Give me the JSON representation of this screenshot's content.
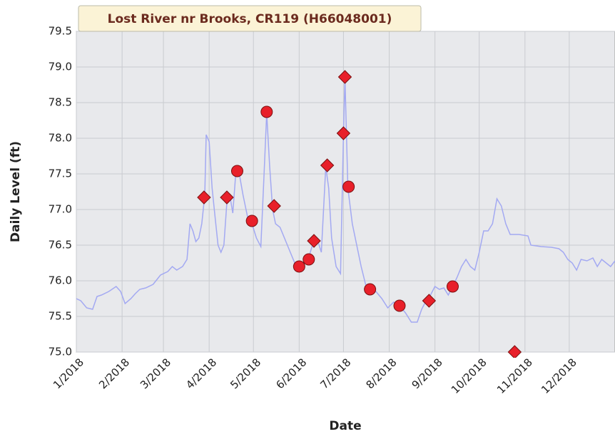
{
  "chart_data": {
    "type": "line",
    "title": "Lost River nr Brooks, CR119 (H66048001)",
    "x_label": "Date",
    "y_label": "Daily Level (ft)",
    "xlim": [
      0,
      365
    ],
    "xticks": [
      {
        "value": 0,
        "label": "1/2018"
      },
      {
        "value": 31,
        "label": "2/2018"
      },
      {
        "value": 59,
        "label": "3/2018"
      },
      {
        "value": 90,
        "label": "4/2018"
      },
      {
        "value": 120,
        "label": "5/2018"
      },
      {
        "value": 151,
        "label": "6/2018"
      },
      {
        "value": 181,
        "label": "7/2018"
      },
      {
        "value": 212,
        "label": "8/2018"
      },
      {
        "value": 243,
        "label": "9/2018"
      },
      {
        "value": 273,
        "label": "10/2018"
      },
      {
        "value": 304,
        "label": "11/2018"
      },
      {
        "value": 334,
        "label": "12/2018"
      }
    ],
    "ylim": [
      75,
      79.5
    ],
    "yticks": [
      {
        "value": 75,
        "label": "75.0"
      },
      75.5,
      {
        "value": 76,
        "label": "76.0"
      },
      76.5,
      {
        "value": 77,
        "label": "77.0"
      },
      77.5,
      {
        "value": 78,
        "label": "78.0"
      },
      78.5,
      {
        "value": 79,
        "label": "79.0"
      },
      79.5
    ],
    "grid": true,
    "series": [
      {
        "marker": "none",
        "color": "#a3a9f2",
        "x": [
          0,
          3,
          7,
          11,
          14,
          17,
          22,
          27,
          30,
          33,
          37,
          40,
          43,
          47,
          52,
          57,
          62,
          65,
          68,
          72,
          75,
          77,
          79,
          81,
          83,
          85,
          87,
          88,
          90,
          92,
          94,
          96,
          98,
          100,
          102,
          104,
          106,
          108,
          110,
          113,
          116,
          119,
          122,
          125,
          127,
          129,
          131,
          133,
          135,
          138,
          141,
          145,
          148,
          151,
          154,
          157,
          160,
          163,
          166,
          169,
          171,
          173,
          176,
          179,
          181,
          182,
          184,
          187,
          190,
          193,
          196,
          199,
          203,
          207,
          211,
          215,
          219,
          223,
          227,
          231,
          234,
          237,
          240,
          243,
          246,
          249,
          252,
          255,
          258,
          261,
          264,
          267,
          270,
          273,
          276,
          279,
          282,
          285,
          288,
          291,
          294,
          300,
          306,
          308,
          315,
          322,
          327,
          330,
          333,
          336,
          339,
          342,
          346,
          350,
          353,
          356,
          359,
          362,
          365
        ],
        "values": [
          75.75,
          75.72,
          75.62,
          75.6,
          75.78,
          75.8,
          75.85,
          75.92,
          75.85,
          75.68,
          75.75,
          75.82,
          75.88,
          75.9,
          75.95,
          76.08,
          76.13,
          76.2,
          76.15,
          76.2,
          76.3,
          76.8,
          76.7,
          76.55,
          76.6,
          76.8,
          77.2,
          78.05,
          77.95,
          77.3,
          76.9,
          76.5,
          76.4,
          76.5,
          77.1,
          77.2,
          76.95,
          77.5,
          77.55,
          77.2,
          76.9,
          76.8,
          76.6,
          76.48,
          77.4,
          78.35,
          77.6,
          77.0,
          76.8,
          76.75,
          76.6,
          76.4,
          76.25,
          76.2,
          76.25,
          76.3,
          76.5,
          76.6,
          76.4,
          77.6,
          77.3,
          76.6,
          76.2,
          76.1,
          78.05,
          78.85,
          77.3,
          76.8,
          76.5,
          76.2,
          75.95,
          75.88,
          75.85,
          75.75,
          75.62,
          75.7,
          75.65,
          75.55,
          75.42,
          75.42,
          75.6,
          75.72,
          75.8,
          75.92,
          75.88,
          75.9,
          75.8,
          75.92,
          76.05,
          76.2,
          76.3,
          76.2,
          76.15,
          76.4,
          76.7,
          76.7,
          76.8,
          77.15,
          77.05,
          76.8,
          76.65,
          76.65,
          76.63,
          76.5,
          76.48,
          76.47,
          76.45,
          76.4,
          76.3,
          76.25,
          76.15,
          76.3,
          76.28,
          76.32,
          76.2,
          76.3,
          76.25,
          76.2,
          76.28
        ]
      },
      {
        "marker": "diamond",
        "color": "#e8202a",
        "x": [
          86.5,
          102,
          134,
          161,
          170,
          181,
          182,
          239,
          297
        ],
        "values": [
          77.17,
          77.17,
          77.05,
          76.56,
          77.62,
          78.07,
          78.86,
          75.72,
          75.0
        ]
      },
      {
        "marker": "circle",
        "color": "#e8202a",
        "x": [
          109,
          119,
          129,
          151,
          157.5,
          184.5,
          199,
          219,
          255
        ],
        "values": [
          77.54,
          76.84,
          78.37,
          76.2,
          76.3,
          77.32,
          75.88,
          75.65,
          75.92
        ]
      }
    ]
  }
}
